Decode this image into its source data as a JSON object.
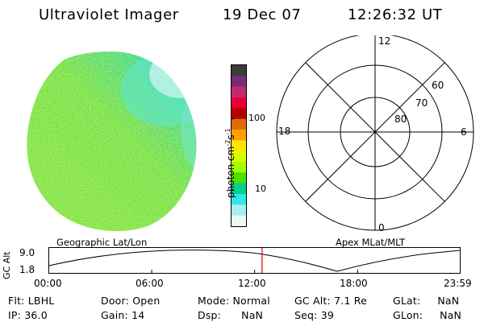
{
  "header": {
    "title": "Ultraviolet Imager",
    "date": "19 Dec 07",
    "time": "12:26:32 UT"
  },
  "colorbar": {
    "label": "photon cm⁻²s⁻¹",
    "label_base": "photon cm",
    "label_exp1": "-2",
    "label_s": "s",
    "label_exp2": "-1",
    "ticks": [
      "100",
      "10"
    ],
    "colors": [
      "#3c3c3c",
      "#7a2a7a",
      "#c42a6e",
      "#e8003a",
      "#b40000",
      "#e06a00",
      "#ffa000",
      "#ffe600",
      "#d8ff00",
      "#a0ff00",
      "#4ce000",
      "#00d090",
      "#30e8e8",
      "#a8f0f0",
      "#e8f8f8"
    ]
  },
  "polar": {
    "mlt_labels": {
      "top": "12",
      "left": "18",
      "right": "6",
      "bottom": "0"
    },
    "lat_labels": [
      "60",
      "70",
      "80"
    ]
  },
  "coord_labels": {
    "left": "Geographic Lat/Lon",
    "right": "Apex MLat/MLT"
  },
  "altitude_plot": {
    "ylabel": "GC Alt",
    "yticks": [
      "9.0",
      "1.8"
    ],
    "xticks": [
      "00:00",
      "06:00",
      "12:00",
      "18:00",
      "23:59"
    ],
    "marker_time": "12:26",
    "marker_color": "#e00000"
  },
  "info": {
    "filter_label": "Flt:",
    "filter_value": "LBHL",
    "ip_label": "IP:",
    "ip_value": "36.0",
    "door_label": "Door:",
    "door_value": "Open",
    "gain_label": "Gain:",
    "gain_value": "14",
    "mode_label": "Mode:",
    "mode_value": "Normal",
    "dsp_label": "Dsp:",
    "dsp_value": "NaN",
    "gcalt_label": "GC Alt:",
    "gcalt_value": "7.1 Re",
    "seq_label": "Seq:",
    "seq_value": "39",
    "glat_label": "GLat:",
    "glat_value": "NaN",
    "glon_label": "GLon:",
    "glon_value": "NaN"
  }
}
